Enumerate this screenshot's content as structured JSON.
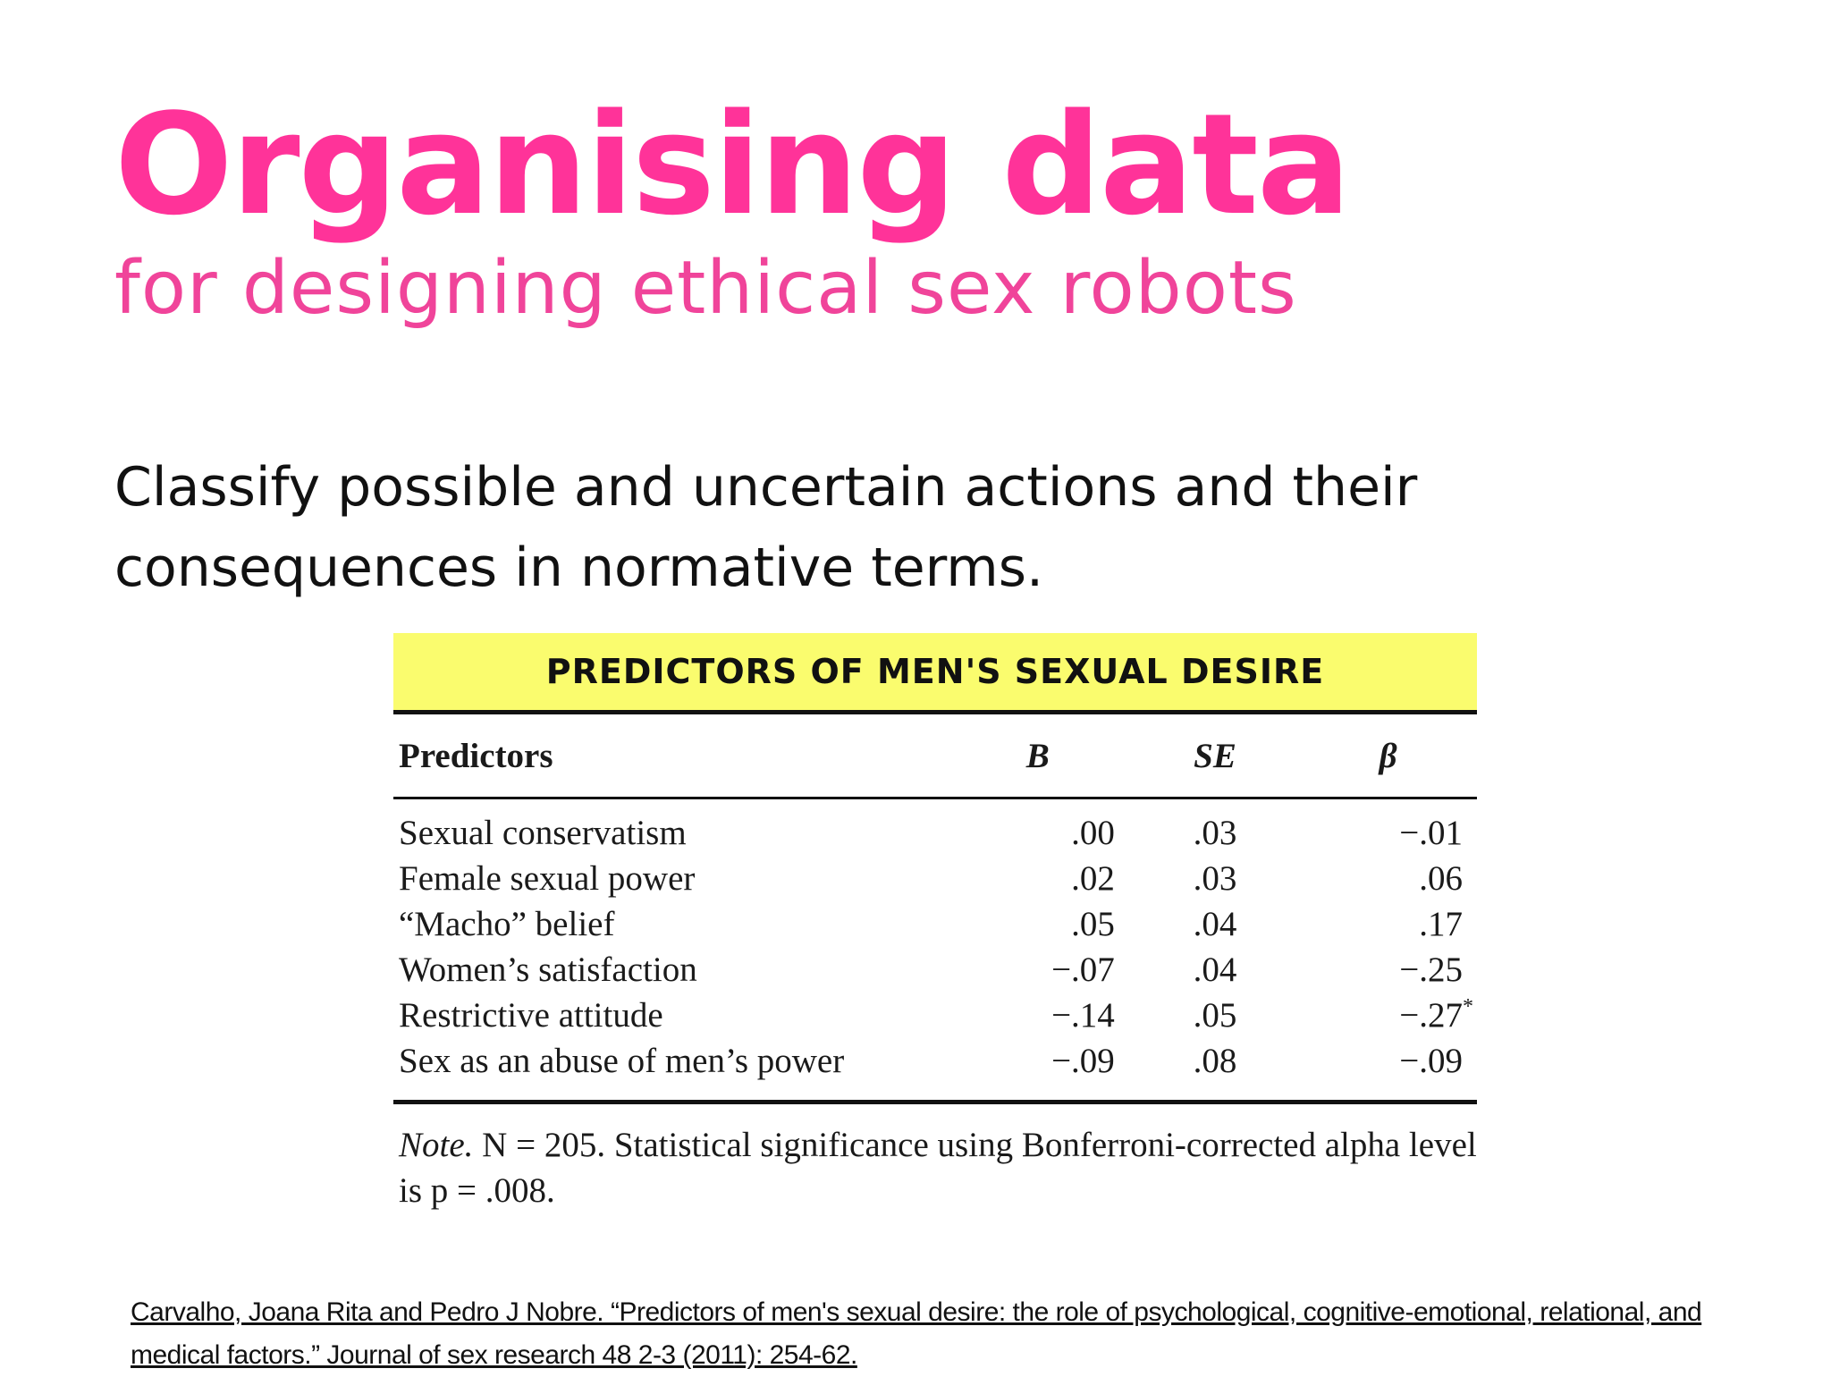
{
  "slide": {
    "title": "Organising data",
    "subtitle": "for designing ethical sex robots",
    "body": "Classify possible and uncertain actions and their consequences in normative terms."
  },
  "table": {
    "heading": "PREDICTORS OF MEN'S SEXUAL DESIRE",
    "columns": [
      "Predictors",
      "B",
      "SE",
      "β"
    ],
    "rows": [
      {
        "predictor": "Sexual conservatism",
        "b": ".00",
        "se": ".03",
        "beta": "−.01",
        "sig": ""
      },
      {
        "predictor": "Female sexual power",
        "b": ".02",
        "se": ".03",
        "beta": ".06",
        "sig": ""
      },
      {
        "predictor": "“Macho” belief",
        "b": ".05",
        "se": ".04",
        "beta": ".17",
        "sig": ""
      },
      {
        "predictor": "Women’s satisfaction",
        "b": "−.07",
        "se": ".04",
        "beta": "−.25",
        "sig": ""
      },
      {
        "predictor": "Restrictive attitude",
        "b": "−.14",
        "se": ".05",
        "beta": "−.27",
        "sig": "*"
      },
      {
        "predictor": "Sex as an abuse of men’s power",
        "b": "−.09",
        "se": ".08",
        "beta": "−.09",
        "sig": ""
      }
    ],
    "note_label": "Note.",
    "note_text": "N = 205. Statistical significance using Bonferroni-corrected alpha level is p = .008."
  },
  "reference": {
    "text": "Carvalho, Joana Rita and Pedro J Nobre. “Predictors of men's sexual desire: the role of psychological, cognitive-emotional, relational, and medical factors.” Journal of sex research 48 2-3 (2011): 254-62."
  }
}
